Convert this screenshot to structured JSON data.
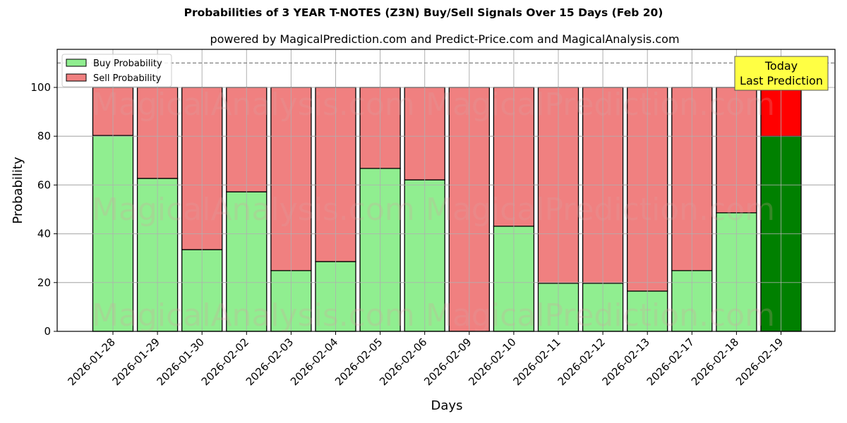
{
  "chart_data": {
    "type": "bar",
    "stacked": true,
    "title": "Probabilities of 3 YEAR T-NOTES (Z3N) Buy/Sell Signals Over 15 Days (Feb 20)",
    "subtitle": "powered by MagicalPrediction.com and Predict-Price.com and MagicalAnalysis.com",
    "xlabel": "Days",
    "ylabel": "Probability",
    "ylim": [
      0,
      115
    ],
    "yticks": [
      0,
      20,
      40,
      60,
      80,
      100
    ],
    "grid": true,
    "legend_position": "upper left",
    "reference_line": {
      "y": 110,
      "style": "dashed",
      "color": "#808080"
    },
    "categories": [
      "2026-01-28",
      "2026-01-29",
      "2026-01-30",
      "2026-02-02",
      "2026-02-03",
      "2026-02-04",
      "2026-02-05",
      "2026-02-06",
      "2026-02-09",
      "2026-02-10",
      "2026-02-11",
      "2026-02-12",
      "2026-02-13",
      "2026-02-17",
      "2026-02-18",
      "2026-02-19"
    ],
    "series": [
      {
        "name": "Buy Probability",
        "color": "#90ee90",
        "values": [
          80.3,
          62.7,
          33.5,
          57.2,
          24.9,
          28.6,
          66.8,
          62.1,
          0.0,
          43.1,
          19.7,
          19.7,
          16.5,
          24.9,
          48.6,
          80.0
        ]
      },
      {
        "name": "Sell Probability",
        "color": "#f08080",
        "values": [
          19.7,
          37.3,
          66.5,
          42.8,
          75.1,
          71.4,
          33.2,
          37.9,
          100.0,
          56.9,
          80.3,
          80.3,
          83.5,
          75.1,
          51.4,
          20.0
        ]
      }
    ],
    "highlight": {
      "index": 15,
      "buy_color": "#008000",
      "sell_color": "#ff0000",
      "annotation": [
        "Today",
        "Last Prediction"
      ],
      "annotation_bg": "#ffff44"
    },
    "watermarks": [
      "MagicalAnalysis.com",
      "MagicalPrediction.com"
    ]
  }
}
